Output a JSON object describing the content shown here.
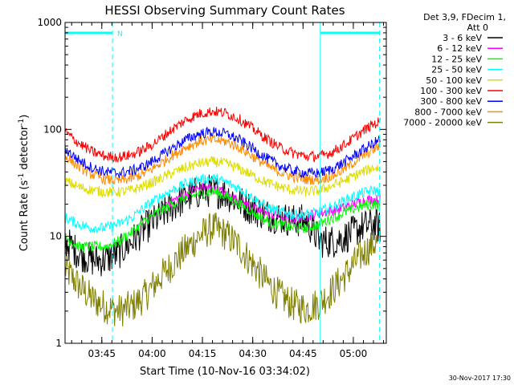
{
  "chart_data": {
    "type": "line",
    "title": "HESSI Observing Summary Count Rates",
    "xlabel": "Start Time (10-Nov-16 03:34:02)",
    "ylabel_main": "Count Rate (s",
    "ylabel_sup1": "-1",
    "ylabel_mid": " detector",
    "ylabel_sup2": "-1",
    "ylabel_end": ")",
    "y_scale": "log",
    "ylim": [
      1,
      1000
    ],
    "xlim": [
      "03:34:02",
      "05:09:50"
    ],
    "x_ticks": [
      "03:45",
      "04:00",
      "04:15",
      "04:30",
      "04:45",
      "05:00"
    ],
    "y_ticks": [
      "1",
      "10",
      "100",
      "1000"
    ],
    "x_minor_step_minutes": 3,
    "legend_header": [
      "Det 3,9, FDecim 1,",
      "Att 0"
    ],
    "legend_placement": "right",
    "series": [
      {
        "name": "3 - 6 keV",
        "color": "#000000",
        "points": [
          [
            "03:34",
            9
          ],
          [
            "03:38",
            7
          ],
          [
            "03:42",
            6
          ],
          [
            "03:46",
            6
          ],
          [
            "03:50",
            7
          ],
          [
            "03:54",
            9
          ],
          [
            "03:58",
            12
          ],
          [
            "04:02",
            15
          ],
          [
            "04:06",
            19
          ],
          [
            "04:10",
            23
          ],
          [
            "04:14",
            26
          ],
          [
            "04:18",
            27
          ],
          [
            "04:22",
            25
          ],
          [
            "04:26",
            21
          ],
          [
            "04:30",
            18
          ],
          [
            "04:34",
            16
          ],
          [
            "04:38",
            15
          ],
          [
            "04:42",
            14
          ],
          [
            "04:46",
            14
          ],
          [
            "04:50",
            9
          ],
          [
            "04:54",
            9
          ],
          [
            "04:58",
            10
          ],
          [
            "05:02",
            12
          ],
          [
            "05:06",
            13
          ],
          [
            "05:08",
            12
          ]
        ]
      },
      {
        "name": "6 - 12 keV",
        "color": "#ff00ff",
        "points": [
          [
            "04:04",
            20
          ],
          [
            "04:08",
            23
          ],
          [
            "04:12",
            27
          ],
          [
            "04:16",
            29
          ],
          [
            "04:20",
            27
          ],
          [
            "04:24",
            23
          ],
          [
            "04:28",
            20
          ],
          [
            "04:32",
            17
          ],
          [
            "04:36",
            16
          ],
          [
            "04:40",
            15
          ],
          [
            "04:44",
            15
          ],
          [
            "04:48",
            16
          ],
          [
            "04:52",
            17
          ],
          [
            "04:56",
            18
          ],
          [
            "05:00",
            20
          ],
          [
            "05:04",
            22
          ],
          [
            "05:08",
            22
          ]
        ]
      },
      {
        "name": "12 - 25 keV",
        "color": "#00ff00",
        "points": [
          [
            "03:34",
            10
          ],
          [
            "03:38",
            8
          ],
          [
            "03:42",
            8
          ],
          [
            "03:46",
            8
          ],
          [
            "03:50",
            9
          ],
          [
            "03:54",
            11
          ],
          [
            "03:58",
            14
          ],
          [
            "04:02",
            17
          ],
          [
            "04:06",
            20
          ],
          [
            "04:10",
            23
          ],
          [
            "04:14",
            25
          ],
          [
            "04:18",
            26
          ],
          [
            "04:22",
            24
          ],
          [
            "04:26",
            20
          ],
          [
            "04:30",
            17
          ],
          [
            "04:34",
            14
          ],
          [
            "04:38",
            13
          ],
          [
            "04:42",
            12
          ],
          [
            "04:46",
            12
          ],
          [
            "04:50",
            13
          ],
          [
            "04:54",
            15
          ],
          [
            "04:58",
            17
          ],
          [
            "05:02",
            19
          ],
          [
            "05:06",
            20
          ],
          [
            "05:08",
            19
          ]
        ]
      },
      {
        "name": "25 - 50 keV",
        "color": "#00ffff",
        "points": [
          [
            "03:34",
            15
          ],
          [
            "03:38",
            13
          ],
          [
            "03:42",
            12
          ],
          [
            "03:46",
            12
          ],
          [
            "03:50",
            13
          ],
          [
            "03:54",
            15
          ],
          [
            "03:58",
            19
          ],
          [
            "04:02",
            23
          ],
          [
            "04:06",
            27
          ],
          [
            "04:10",
            31
          ],
          [
            "04:14",
            34
          ],
          [
            "04:18",
            35
          ],
          [
            "04:22",
            32
          ],
          [
            "04:26",
            28
          ],
          [
            "04:30",
            23
          ],
          [
            "04:34",
            19
          ],
          [
            "04:38",
            17
          ],
          [
            "04:42",
            16
          ],
          [
            "04:46",
            16
          ],
          [
            "04:50",
            17
          ],
          [
            "04:54",
            19
          ],
          [
            "04:58",
            22
          ],
          [
            "05:02",
            25
          ],
          [
            "05:06",
            27
          ],
          [
            "05:08",
            26
          ]
        ]
      },
      {
        "name": "50 - 100 keV",
        "color": "#dddd00",
        "points": [
          [
            "03:34",
            33
          ],
          [
            "03:38",
            29
          ],
          [
            "03:42",
            27
          ],
          [
            "03:46",
            26
          ],
          [
            "03:50",
            26
          ],
          [
            "03:54",
            27
          ],
          [
            "03:58",
            30
          ],
          [
            "04:02",
            34
          ],
          [
            "04:06",
            39
          ],
          [
            "04:10",
            44
          ],
          [
            "04:14",
            48
          ],
          [
            "04:18",
            50
          ],
          [
            "04:22",
            48
          ],
          [
            "04:26",
            43
          ],
          [
            "04:30",
            37
          ],
          [
            "04:34",
            32
          ],
          [
            "04:38",
            29
          ],
          [
            "04:42",
            27
          ],
          [
            "04:46",
            26
          ],
          [
            "04:50",
            27
          ],
          [
            "04:54",
            30
          ],
          [
            "04:58",
            34
          ],
          [
            "05:02",
            39
          ],
          [
            "05:06",
            44
          ],
          [
            "05:08",
            43
          ]
        ]
      },
      {
        "name": "100 - 300 keV",
        "color": "#ff0000",
        "points": [
          [
            "03:34",
            95
          ],
          [
            "03:38",
            75
          ],
          [
            "03:42",
            62
          ],
          [
            "03:46",
            56
          ],
          [
            "03:50",
            55
          ],
          [
            "03:54",
            58
          ],
          [
            "03:58",
            66
          ],
          [
            "04:02",
            80
          ],
          [
            "04:06",
            100
          ],
          [
            "04:10",
            122
          ],
          [
            "04:14",
            140
          ],
          [
            "04:18",
            148
          ],
          [
            "04:22",
            142
          ],
          [
            "04:26",
            125
          ],
          [
            "04:30",
            102
          ],
          [
            "04:34",
            82
          ],
          [
            "04:38",
            68
          ],
          [
            "04:42",
            60
          ],
          [
            "04:46",
            56
          ],
          [
            "04:50",
            56
          ],
          [
            "04:54",
            62
          ],
          [
            "04:58",
            74
          ],
          [
            "05:02",
            92
          ],
          [
            "05:06",
            112
          ],
          [
            "05:08",
            118
          ]
        ]
      },
      {
        "name": "300 - 800 keV",
        "color": "#0000ff",
        "points": [
          [
            "03:34",
            66
          ],
          [
            "03:38",
            52
          ],
          [
            "03:42",
            44
          ],
          [
            "03:46",
            40
          ],
          [
            "03:50",
            39
          ],
          [
            "03:54",
            41
          ],
          [
            "03:58",
            46
          ],
          [
            "04:02",
            55
          ],
          [
            "04:06",
            67
          ],
          [
            "04:10",
            80
          ],
          [
            "04:14",
            91
          ],
          [
            "04:18",
            95
          ],
          [
            "04:22",
            91
          ],
          [
            "04:26",
            80
          ],
          [
            "04:30",
            66
          ],
          [
            "04:34",
            54
          ],
          [
            "04:38",
            46
          ],
          [
            "04:42",
            41
          ],
          [
            "04:46",
            39
          ],
          [
            "04:50",
            39
          ],
          [
            "04:54",
            43
          ],
          [
            "04:58",
            51
          ],
          [
            "05:02",
            62
          ],
          [
            "05:06",
            74
          ],
          [
            "05:08",
            80
          ]
        ]
      },
      {
        "name": "800 - 7000 keV",
        "color": "#ff8c00",
        "points": [
          [
            "03:34",
            57
          ],
          [
            "03:38",
            45
          ],
          [
            "03:42",
            38
          ],
          [
            "03:46",
            34
          ],
          [
            "03:50",
            33
          ],
          [
            "03:54",
            35
          ],
          [
            "03:58",
            39
          ],
          [
            "04:02",
            47
          ],
          [
            "04:06",
            57
          ],
          [
            "04:10",
            68
          ],
          [
            "04:14",
            77
          ],
          [
            "04:18",
            80
          ],
          [
            "04:22",
            77
          ],
          [
            "04:26",
            68
          ],
          [
            "04:30",
            56
          ],
          [
            "04:34",
            46
          ],
          [
            "04:38",
            40
          ],
          [
            "04:42",
            36
          ],
          [
            "04:46",
            34
          ],
          [
            "04:50",
            34
          ],
          [
            "04:54",
            37
          ],
          [
            "04:58",
            44
          ],
          [
            "05:02",
            54
          ],
          [
            "05:06",
            65
          ],
          [
            "05:08",
            70
          ]
        ]
      },
      {
        "name": "7000 - 20000 keV",
        "color": "#808000",
        "points": [
          [
            "03:34",
            5
          ],
          [
            "03:38",
            3.5
          ],
          [
            "03:42",
            2.6
          ],
          [
            "03:46",
            2.2
          ],
          [
            "03:50",
            2
          ],
          [
            "03:54",
            2.2
          ],
          [
            "03:58",
            2.8
          ],
          [
            "04:02",
            4
          ],
          [
            "04:06",
            5.5
          ],
          [
            "04:10",
            7.5
          ],
          [
            "04:14",
            10
          ],
          [
            "04:18",
            12
          ],
          [
            "04:22",
            10.5
          ],
          [
            "04:26",
            8
          ],
          [
            "04:30",
            5.5
          ],
          [
            "04:34",
            3.8
          ],
          [
            "04:38",
            2.8
          ],
          [
            "04:42",
            2.3
          ],
          [
            "04:46",
            2.1
          ],
          [
            "04:50",
            2.4
          ],
          [
            "04:54",
            3.2
          ],
          [
            "04:58",
            4.5
          ],
          [
            "05:02",
            6.5
          ],
          [
            "05:06",
            8.5
          ],
          [
            "05:08",
            9
          ]
        ]
      }
    ],
    "attenuator_markers": [
      {
        "time": "03:34:02",
        "style": "solid",
        "color": "#00ffff"
      },
      {
        "time": "03:48:10",
        "style": "dashed",
        "color": "#00ffff"
      },
      {
        "time": "04:50:10",
        "style": "solid",
        "color": "#00ffff"
      },
      {
        "time": "05:07:50",
        "style": "dashed",
        "color": "#00ffff"
      }
    ],
    "night_bars": [
      {
        "start": "03:34:02",
        "end": "03:48:10",
        "label": "N"
      },
      {
        "start": "04:50:10",
        "end": "05:08:00",
        "label": ""
      }
    ],
    "timestamp": "30-Nov-2017 17:30"
  }
}
